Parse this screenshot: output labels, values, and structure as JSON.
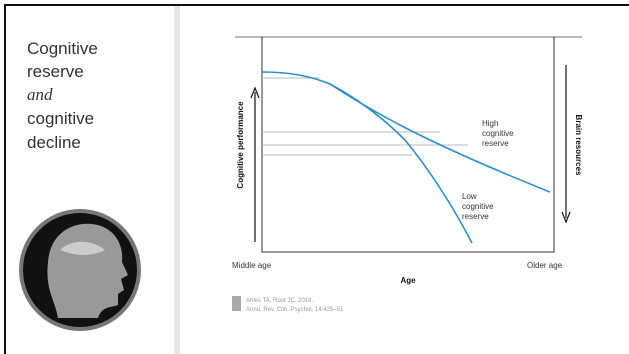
{
  "slide": {
    "title_lines": [
      "Cognitive",
      "reserve",
      "and",
      "cognitive",
      "decline"
    ]
  },
  "figure": {
    "y_label": "Cognitive performance",
    "y2_label": "Brain resources",
    "x_label": "Age",
    "x_start": "Middle age",
    "x_end": "Older age",
    "curves": [
      {
        "label_lines": [
          "High",
          "cognitive",
          "reserve"
        ]
      },
      {
        "label_lines": [
          "Low",
          "cognitive",
          "reserve"
        ]
      }
    ],
    "citation": [
      "Ahles TA, Root JC. 2018.",
      "Annu. Rev. Clin. Psychol. 14:425–51"
    ]
  }
}
